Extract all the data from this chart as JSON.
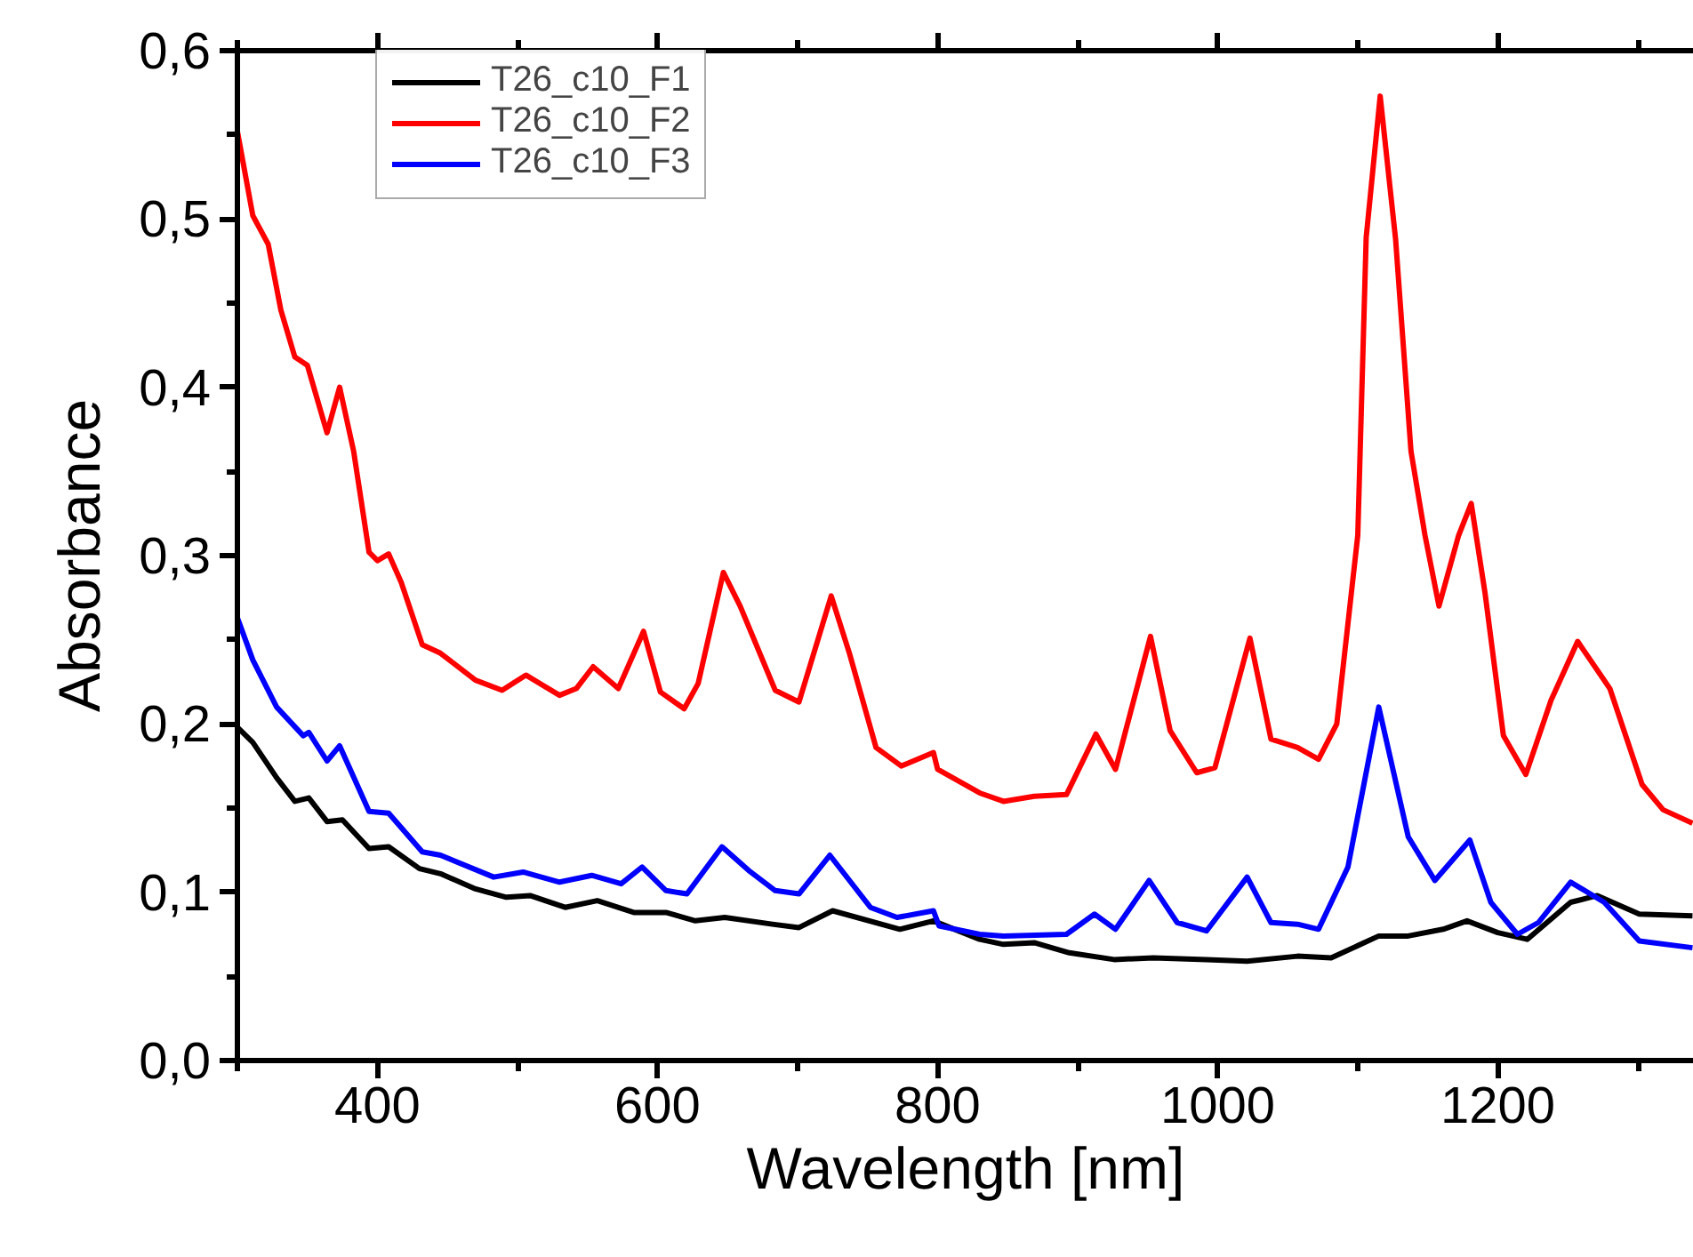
{
  "chart_data": {
    "type": "line",
    "xlabel": "Wavelength [nm]",
    "ylabel": "Absorbance",
    "xlim": [
      300,
      1340
    ],
    "ylim": [
      0,
      0.6
    ],
    "xticks": [
      {
        "value": 300,
        "label": null
      },
      400,
      {
        "value": 500,
        "label": null
      },
      600,
      {
        "value": 700,
        "label": null
      },
      800,
      {
        "value": 900,
        "label": null
      },
      1000,
      {
        "value": 1100,
        "label": null
      },
      1200,
      {
        "value": 1300,
        "label": null
      }
    ],
    "yticks": [
      {
        "value": 0,
        "label": "0,0"
      },
      {
        "value": 0.05,
        "label": null
      },
      {
        "value": 0.1,
        "label": "0,1"
      },
      {
        "value": 0.15,
        "label": null
      },
      {
        "value": 0.2,
        "label": "0,2"
      },
      {
        "value": 0.25,
        "label": null
      },
      {
        "value": 0.3,
        "label": "0,3"
      },
      {
        "value": 0.35,
        "label": null
      },
      {
        "value": 0.4,
        "label": "0,4"
      },
      {
        "value": 0.45,
        "label": null
      },
      {
        "value": 0.5,
        "label": "0,5"
      },
      {
        "value": 0.55,
        "label": null
      },
      {
        "value": 0.6,
        "label": "0,6"
      }
    ],
    "grid": false,
    "legend": "top left",
    "line_style": "solid",
    "marker": "none",
    "series": [
      {
        "name": "T26_c10_F1",
        "color": "#000000",
        "x": [
          300,
          311,
          328,
          341,
          351,
          364,
          375,
          394,
          408,
          430,
          445,
          470,
          492,
          509,
          534,
          557,
          583,
          606,
          627,
          648,
          682,
          701,
          725,
          773,
          797,
          830,
          847,
          869,
          894,
          926,
          954,
          992,
          1021,
          1057,
          1081,
          1115,
          1136,
          1161,
          1178,
          1200,
          1221,
          1252,
          1271,
          1301,
          1339
        ],
        "values": [
          0.198,
          0.189,
          0.168,
          0.154,
          0.156,
          0.142,
          0.143,
          0.126,
          0.127,
          0.114,
          0.111,
          0.102,
          0.097,
          0.098,
          0.091,
          0.095,
          0.088,
          0.088,
          0.083,
          0.085,
          0.081,
          0.079,
          0.089,
          0.078,
          0.083,
          0.072,
          0.069,
          0.07,
          0.064,
          0.06,
          0.061,
          0.06,
          0.059,
          0.062,
          0.061,
          0.074,
          0.074,
          0.078,
          0.083,
          0.076,
          0.072,
          0.094,
          0.098,
          0.087,
          0.086
        ]
      },
      {
        "name": "T26_c10_F2",
        "color": "#ff0000",
        "x": [
          300,
          311,
          322,
          331,
          341,
          350,
          364,
          373,
          383,
          394,
          400,
          408,
          417,
          432,
          445,
          470,
          489,
          506,
          530,
          542,
          554,
          572,
          590,
          602,
          619,
          629,
          647,
          659,
          684,
          701,
          724,
          737,
          756,
          774,
          797,
          800,
          830,
          847,
          869,
          892,
          913,
          927,
          952,
          966,
          985,
          998,
          1023,
          1038,
          1057,
          1072,
          1085,
          1100,
          1106,
          1116,
          1127,
          1138,
          1148,
          1158,
          1172,
          1181,
          1191,
          1204,
          1220,
          1238,
          1257,
          1280,
          1303,
          1318,
          1339
        ],
        "values": [
          0.552,
          0.502,
          0.485,
          0.446,
          0.418,
          0.413,
          0.373,
          0.4,
          0.362,
          0.302,
          0.297,
          0.301,
          0.284,
          0.247,
          0.242,
          0.226,
          0.22,
          0.229,
          0.217,
          0.221,
          0.234,
          0.221,
          0.255,
          0.219,
          0.209,
          0.224,
          0.29,
          0.27,
          0.22,
          0.213,
          0.276,
          0.242,
          0.186,
          0.175,
          0.183,
          0.173,
          0.159,
          0.154,
          0.157,
          0.158,
          0.194,
          0.173,
          0.252,
          0.196,
          0.171,
          0.174,
          0.251,
          0.191,
          0.186,
          0.179,
          0.2,
          0.312,
          0.489,
          0.573,
          0.488,
          0.362,
          0.312,
          0.27,
          0.312,
          0.331,
          0.277,
          0.193,
          0.17,
          0.214,
          0.249,
          0.221,
          0.164,
          0.149,
          0.141
        ]
      },
      {
        "name": "T26_c10_F3",
        "color": "#0000ff",
        "x": [
          300,
          311,
          328,
          347,
          351,
          364,
          373,
          394,
          408,
          432,
          445,
          483,
          504,
          530,
          553,
          574,
          589,
          606,
          621,
          646,
          665,
          684,
          701,
          723,
          752,
          771,
          797,
          801,
          830,
          847,
          892,
          912,
          927,
          951,
          971,
          992,
          1021,
          1038,
          1057,
          1072,
          1093,
          1115,
          1136,
          1155,
          1180,
          1195,
          1214,
          1229,
          1252,
          1276,
          1301,
          1339
        ],
        "values": [
          0.263,
          0.238,
          0.21,
          0.193,
          0.195,
          0.178,
          0.187,
          0.148,
          0.147,
          0.124,
          0.122,
          0.109,
          0.112,
          0.106,
          0.11,
          0.105,
          0.115,
          0.101,
          0.099,
          0.127,
          0.113,
          0.101,
          0.099,
          0.122,
          0.091,
          0.085,
          0.089,
          0.08,
          0.075,
          0.074,
          0.075,
          0.087,
          0.078,
          0.107,
          0.082,
          0.077,
          0.109,
          0.082,
          0.081,
          0.078,
          0.115,
          0.21,
          0.133,
          0.107,
          0.131,
          0.094,
          0.075,
          0.082,
          0.106,
          0.094,
          0.071,
          0.067
        ]
      }
    ]
  }
}
